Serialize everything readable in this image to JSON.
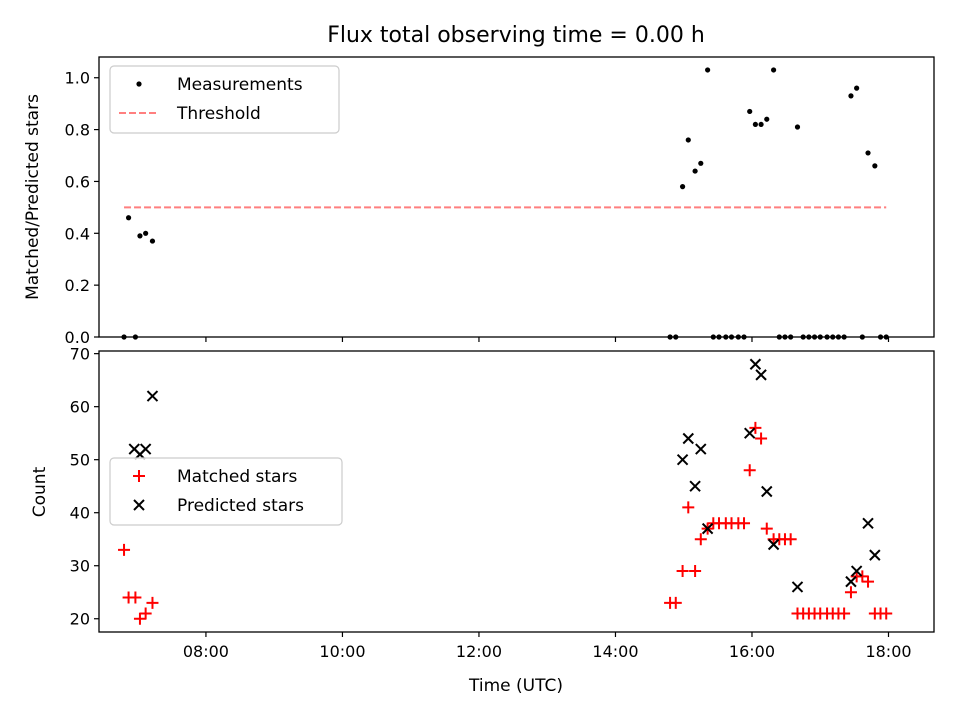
{
  "figure": {
    "title": "Flux total observing time = 0.00 h"
  },
  "chart_data": [
    {
      "type": "scatter",
      "ylabel": "Matched/Predicted stars",
      "xlim": [
        "06:26",
        "18:40"
      ],
      "ylim": [
        0.0,
        1.08
      ],
      "yticks": [
        "0.0",
        "0.2",
        "0.4",
        "0.6",
        "0.8",
        "1.0"
      ],
      "xticks": [
        "08:00",
        "10:00",
        "12:00",
        "14:00",
        "16:00",
        "18:00"
      ],
      "show_xticklabels": false,
      "grid": false,
      "legend_position": "upper-left",
      "series": [
        {
          "name": "Measurements",
          "kind": "scatter",
          "marker": "dot",
          "color": "#000000",
          "points": [
            [
              "06:48",
              0.0
            ],
            [
              "06:52",
              0.46
            ],
            [
              "06:58",
              0.0
            ],
            [
              "07:02",
              0.39
            ],
            [
              "07:07",
              0.4
            ],
            [
              "07:13",
              0.37
            ],
            [
              "14:48",
              0.0
            ],
            [
              "14:53",
              0.0
            ],
            [
              "14:59",
              0.58
            ],
            [
              "15:04",
              0.76
            ],
            [
              "15:10",
              0.64
            ],
            [
              "15:15",
              0.67
            ],
            [
              "15:21",
              1.03
            ],
            [
              "15:26",
              0.0
            ],
            [
              "15:31",
              0.0
            ],
            [
              "15:37",
              0.0
            ],
            [
              "15:42",
              0.0
            ],
            [
              "15:48",
              0.0
            ],
            [
              "15:53",
              0.0
            ],
            [
              "15:58",
              0.87
            ],
            [
              "16:03",
              0.82
            ],
            [
              "16:08",
              0.82
            ],
            [
              "16:13",
              0.84
            ],
            [
              "16:19",
              1.03
            ],
            [
              "16:24",
              0.0
            ],
            [
              "16:29",
              0.0
            ],
            [
              "16:34",
              0.0
            ],
            [
              "16:40",
              0.81
            ],
            [
              "16:45",
              0.0
            ],
            [
              "16:50",
              0.0
            ],
            [
              "16:55",
              0.0
            ],
            [
              "17:00",
              0.0
            ],
            [
              "17:06",
              0.0
            ],
            [
              "17:11",
              0.0
            ],
            [
              "17:16",
              0.0
            ],
            [
              "17:21",
              0.0
            ],
            [
              "17:27",
              0.93
            ],
            [
              "17:32",
              0.96
            ],
            [
              "17:37",
              0.0
            ],
            [
              "17:42",
              0.71
            ],
            [
              "17:48",
              0.66
            ],
            [
              "17:53",
              0.0
            ],
            [
              "17:58",
              0.0
            ]
          ]
        },
        {
          "name": "Threshold",
          "kind": "line",
          "dash": true,
          "color": "#ff7f7f",
          "points": [
            [
              "06:48",
              0.5
            ],
            [
              "17:58",
              0.5
            ]
          ]
        }
      ]
    },
    {
      "type": "scatter",
      "xlabel": "Time (UTC)",
      "ylabel": "Count",
      "xlim": [
        "06:26",
        "18:40"
      ],
      "ylim": [
        17.5,
        70.5
      ],
      "yticks": [
        "20",
        "30",
        "40",
        "50",
        "60",
        "70"
      ],
      "xticks": [
        "08:00",
        "10:00",
        "12:00",
        "14:00",
        "16:00",
        "18:00"
      ],
      "show_xticklabels": true,
      "grid": false,
      "legend_position": "center-left",
      "series": [
        {
          "name": "Matched stars",
          "kind": "scatter",
          "marker": "plus",
          "color": "#ff0000",
          "points": [
            [
              "06:48",
              33
            ],
            [
              "06:52",
              24
            ],
            [
              "06:58",
              24
            ],
            [
              "07:02",
              20
            ],
            [
              "07:07",
              21
            ],
            [
              "07:13",
              23
            ],
            [
              "14:48",
              23
            ],
            [
              "14:53",
              23
            ],
            [
              "14:59",
              29
            ],
            [
              "15:04",
              41
            ],
            [
              "15:10",
              29
            ],
            [
              "15:15",
              35
            ],
            [
              "15:21",
              37
            ],
            [
              "15:26",
              38
            ],
            [
              "15:31",
              38
            ],
            [
              "15:37",
              38
            ],
            [
              "15:42",
              38
            ],
            [
              "15:48",
              38
            ],
            [
              "15:53",
              38
            ],
            [
              "15:58",
              48
            ],
            [
              "16:03",
              56
            ],
            [
              "16:08",
              54
            ],
            [
              "16:13",
              37
            ],
            [
              "16:19",
              35
            ],
            [
              "16:24",
              35
            ],
            [
              "16:29",
              35
            ],
            [
              "16:34",
              35
            ],
            [
              "16:40",
              21
            ],
            [
              "16:45",
              21
            ],
            [
              "16:50",
              21
            ],
            [
              "16:55",
              21
            ],
            [
              "17:00",
              21
            ],
            [
              "17:06",
              21
            ],
            [
              "17:11",
              21
            ],
            [
              "17:16",
              21
            ],
            [
              "17:21",
              21
            ],
            [
              "17:27",
              25
            ],
            [
              "17:32",
              28
            ],
            [
              "17:37",
              28
            ],
            [
              "17:42",
              27
            ],
            [
              "17:48",
              21
            ],
            [
              "17:53",
              21
            ],
            [
              "17:58",
              21
            ]
          ]
        },
        {
          "name": "Predicted stars",
          "kind": "scatter",
          "marker": "x",
          "color": "#000000",
          "points": [
            [
              "06:57",
              52
            ],
            [
              "07:02",
              51
            ],
            [
              "07:07",
              52
            ],
            [
              "07:13",
              62
            ],
            [
              "14:59",
              50
            ],
            [
              "15:04",
              54
            ],
            [
              "15:10",
              45
            ],
            [
              "15:15",
              52
            ],
            [
              "15:21",
              37
            ],
            [
              "15:58",
              55
            ],
            [
              "16:03",
              68
            ],
            [
              "16:08",
              66
            ],
            [
              "16:13",
              44
            ],
            [
              "16:19",
              34
            ],
            [
              "16:40",
              26
            ],
            [
              "17:27",
              27
            ],
            [
              "17:32",
              29
            ],
            [
              "17:42",
              38
            ],
            [
              "17:48",
              32
            ]
          ]
        }
      ]
    }
  ]
}
